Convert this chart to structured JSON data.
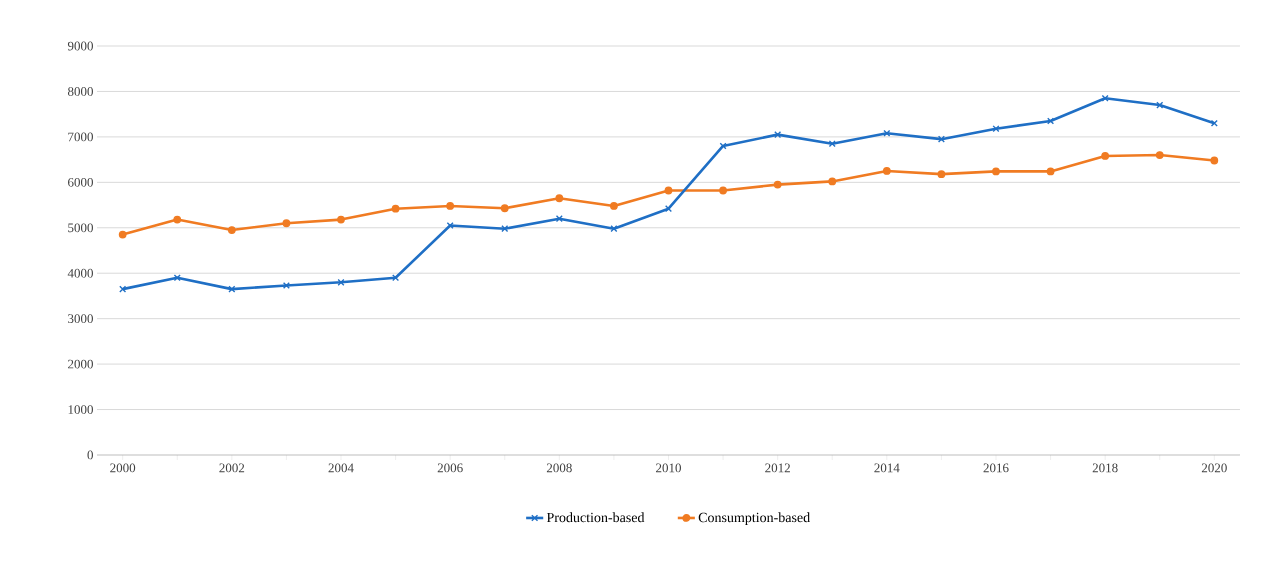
{
  "chart_data": {
    "type": "line",
    "categories": [
      "2000",
      null,
      "2002",
      null,
      "2004",
      null,
      "2006",
      null,
      "2008",
      null,
      "2010",
      null,
      "2012",
      null,
      "2014",
      null,
      "2016",
      null,
      "2018",
      null,
      "2020"
    ],
    "series": [
      {
        "name": "Production-based",
        "color": "#1f6fc5",
        "marker": "cross",
        "values": [
          3650,
          3900,
          3650,
          3730,
          3800,
          3900,
          5050,
          4980,
          5200,
          4980,
          5420,
          6800,
          7050,
          6850,
          7080,
          6950,
          7180,
          7350,
          7850,
          7700,
          7300
        ]
      },
      {
        "name": "Consumption-based",
        "color": "#f07b22",
        "marker": "circle",
        "values": [
          4850,
          5180,
          4950,
          5100,
          5180,
          5420,
          5480,
          5430,
          5650,
          5480,
          5820,
          5820,
          5950,
          6020,
          6250,
          6180,
          6240,
          6240,
          6580,
          6600,
          6480
        ]
      }
    ],
    "ylim": [
      0,
      9000
    ],
    "yticks": [
      0,
      1000,
      2000,
      3000,
      4000,
      5000,
      6000,
      7000,
      8000,
      9000
    ],
    "grid": "y",
    "legend": "bottom",
    "line_style": "solid"
  }
}
